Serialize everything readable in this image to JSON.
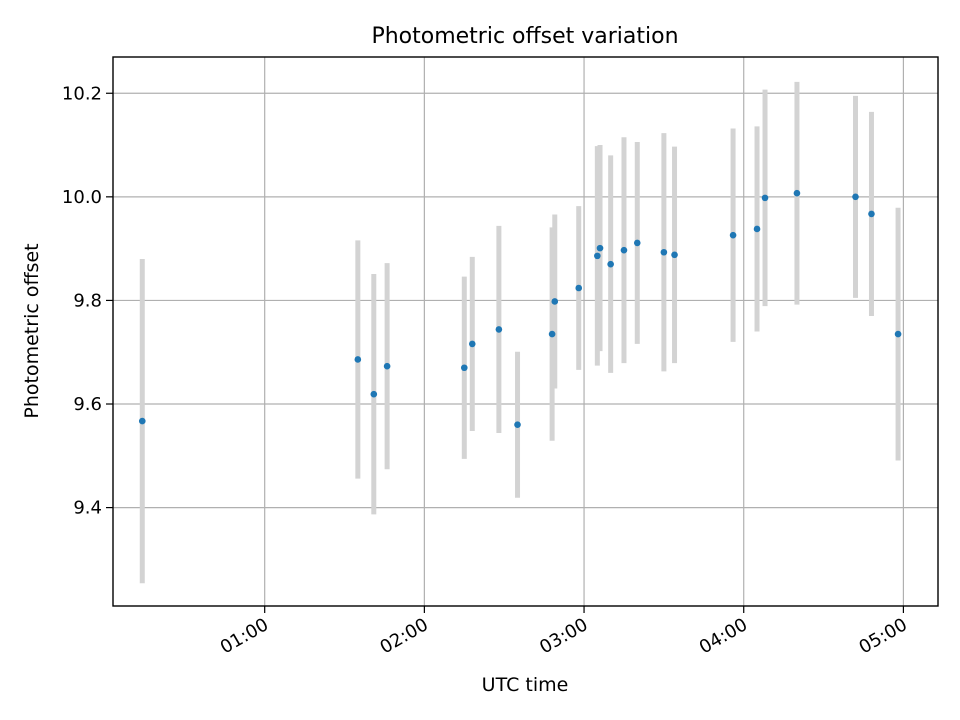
{
  "chart_data": {
    "type": "scatter",
    "title": "Photometric offset variation",
    "xlabel": "UTC time",
    "ylabel": "Photometric offset",
    "x_axis": {
      "type": "time",
      "range": [
        "00:03",
        "05:13"
      ],
      "ticks": [
        "01:00",
        "02:00",
        "03:00",
        "04:00",
        "05:00"
      ]
    },
    "y_axis": {
      "range": [
        9.21,
        10.27
      ],
      "ticks": [
        "9.4",
        "9.6",
        "9.8",
        "10.0",
        "10.2"
      ]
    },
    "grid": true,
    "colors": {
      "point": "#1f77b4",
      "errorbar": "#d3d3d3"
    },
    "points": [
      {
        "time": "00:14",
        "y": 9.567,
        "err": 0.313
      },
      {
        "time": "01:35",
        "y": 9.686,
        "err": 0.23
      },
      {
        "time": "01:41",
        "y": 9.619,
        "err": 0.232
      },
      {
        "time": "01:46",
        "y": 9.673,
        "err": 0.199
      },
      {
        "time": "02:15",
        "y": 9.67,
        "err": 0.176
      },
      {
        "time": "02:18",
        "y": 9.716,
        "err": 0.168
      },
      {
        "time": "02:28",
        "y": 9.744,
        "err": 0.2
      },
      {
        "time": "02:35",
        "y": 9.56,
        "err": 0.141
      },
      {
        "time": "02:48",
        "y": 9.735,
        "err": 0.206
      },
      {
        "time": "02:49",
        "y": 9.798,
        "err": 0.168
      },
      {
        "time": "02:58",
        "y": 9.824,
        "err": 0.158
      },
      {
        "time": "03:05",
        "y": 9.886,
        "err": 0.212
      },
      {
        "time": "03:06",
        "y": 9.901,
        "err": 0.199
      },
      {
        "time": "03:10",
        "y": 9.87,
        "err": 0.21
      },
      {
        "time": "03:15",
        "y": 9.897,
        "err": 0.218
      },
      {
        "time": "03:20",
        "y": 9.911,
        "err": 0.195
      },
      {
        "time": "03:30",
        "y": 9.893,
        "err": 0.23
      },
      {
        "time": "03:34",
        "y": 9.888,
        "err": 0.209
      },
      {
        "time": "03:56",
        "y": 9.926,
        "err": 0.206
      },
      {
        "time": "04:05",
        "y": 9.938,
        "err": 0.198
      },
      {
        "time": "04:08",
        "y": 9.998,
        "err": 0.209
      },
      {
        "time": "04:20",
        "y": 10.007,
        "err": 0.215
      },
      {
        "time": "04:42",
        "y": 10.0,
        "err": 0.195
      },
      {
        "time": "04:48",
        "y": 9.967,
        "err": 0.197
      },
      {
        "time": "04:58",
        "y": 9.735,
        "err": 0.244
      }
    ]
  }
}
